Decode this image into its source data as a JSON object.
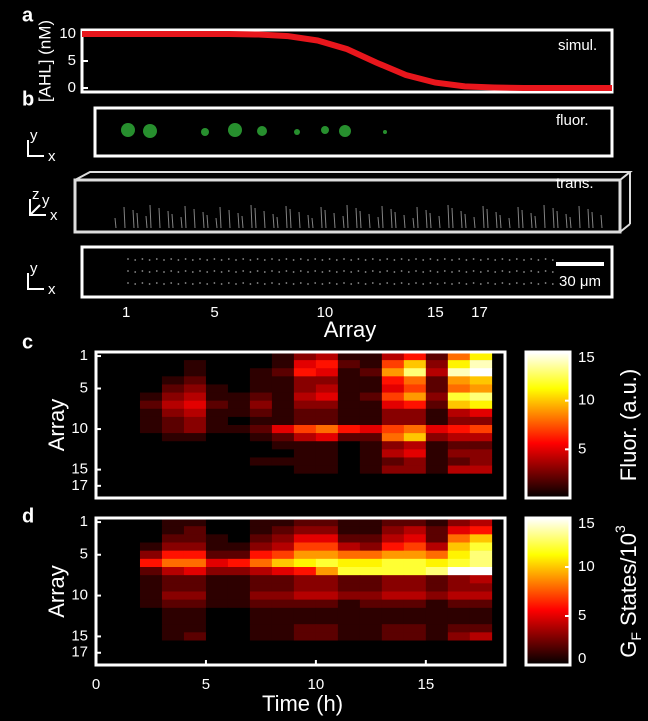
{
  "chart_data": [
    {
      "type": "line",
      "panel": "a",
      "ylabel": "[AHL] (nM)",
      "annotation": "simul.",
      "color": "#e8161c",
      "x": [
        0,
        1,
        2,
        3,
        4,
        5,
        6,
        7,
        8,
        9,
        10,
        11,
        12,
        13,
        14,
        15,
        16,
        17,
        18
      ],
      "values": [
        10,
        10,
        10,
        10,
        10,
        10,
        9.9,
        9.6,
        8.8,
        7.2,
        4.7,
        2.4,
        1,
        0.3,
        0.1,
        0,
        0,
        0,
        0
      ],
      "xlim": [
        0,
        18
      ],
      "ylim": [
        0,
        10
      ],
      "yticks": [
        0,
        5,
        10
      ]
    },
    {
      "type": "image",
      "panel": "b",
      "labels": [
        "fluor.",
        "trans."
      ],
      "scale_bar": "30 μm",
      "axes_glyphs": [
        "y",
        "x",
        "z"
      ],
      "xlabel": "Array",
      "xlim": [
        -1,
        23
      ],
      "xticks": [
        1,
        5,
        10,
        15,
        17
      ]
    },
    {
      "type": "heatmap",
      "panel": "c",
      "ylabel": "Array",
      "colorbar_label": "Fluor. (a.u.)",
      "x": [
        0.5,
        1.5,
        2.5,
        3.5,
        4.5,
        5.5,
        6.5,
        7.5,
        8.5,
        9.5,
        10.5,
        11.5,
        12.5,
        13.5,
        14.5,
        15.5,
        16.5,
        17.5
      ],
      "y": [
        1,
        2,
        3,
        4,
        5,
        6,
        7,
        8,
        9,
        10,
        11,
        12,
        13,
        14,
        15,
        16,
        17
      ],
      "values": [
        [
          0,
          0,
          0,
          0,
          0,
          0,
          0,
          0,
          1,
          3,
          4,
          1,
          1,
          4,
          6,
          2,
          8,
          11
        ],
        [
          0,
          0,
          0,
          0,
          1,
          0,
          0,
          0,
          1,
          5,
          6,
          2,
          1,
          7,
          10,
          3,
          11,
          14
        ],
        [
          0,
          0,
          0,
          0,
          1,
          0,
          0,
          1,
          2,
          6,
          5,
          1,
          2,
          9,
          13,
          4,
          14,
          15
        ],
        [
          0,
          0,
          0,
          1,
          2,
          0,
          0,
          1,
          1,
          3,
          3,
          1,
          1,
          6,
          8,
          2,
          9,
          10
        ],
        [
          0,
          0,
          0,
          2,
          3,
          1,
          0,
          1,
          1,
          3,
          4,
          1,
          1,
          5,
          7,
          2,
          8,
          9
        ],
        [
          0,
          0,
          1,
          3,
          4,
          1,
          1,
          2,
          1,
          4,
          5,
          1,
          2,
          7,
          9,
          3,
          12,
          13
        ],
        [
          0,
          0,
          2,
          4,
          5,
          2,
          1,
          3,
          1,
          3,
          3,
          1,
          1,
          5,
          6,
          2,
          10,
          11
        ],
        [
          0,
          0,
          1,
          3,
          4,
          1,
          1,
          2,
          1,
          2,
          2,
          1,
          1,
          3,
          3,
          1,
          4,
          5
        ],
        [
          0,
          0,
          1,
          2,
          3,
          1,
          0,
          1,
          1,
          2,
          2,
          1,
          1,
          3,
          3,
          1,
          3,
          3
        ],
        [
          0,
          0,
          1,
          2,
          3,
          1,
          1,
          2,
          5,
          7,
          8,
          6,
          5,
          7,
          8,
          5,
          6,
          7
        ],
        [
          0,
          0,
          0,
          1,
          1,
          0,
          0,
          1,
          2,
          4,
          5,
          2,
          2,
          8,
          10,
          3,
          4,
          4
        ],
        [
          0,
          0,
          0,
          0,
          0,
          0,
          0,
          0,
          1,
          1,
          1,
          0,
          1,
          3,
          4,
          1,
          2,
          2
        ],
        [
          0,
          0,
          0,
          0,
          0,
          0,
          0,
          0,
          0,
          1,
          1,
          0,
          1,
          4,
          5,
          1,
          3,
          3
        ],
        [
          0,
          0,
          0,
          0,
          0,
          0,
          0,
          1,
          1,
          1,
          1,
          0,
          1,
          2,
          3,
          1,
          2,
          3
        ],
        [
          0,
          0,
          0,
          0,
          0,
          0,
          0,
          0,
          0,
          1,
          1,
          0,
          1,
          3,
          3,
          1,
          4,
          4
        ],
        [
          0,
          0,
          0,
          0,
          0,
          0,
          0,
          0,
          0,
          0,
          0,
          0,
          0,
          0,
          0,
          0,
          0,
          0
        ],
        [
          0,
          0,
          0,
          0,
          0,
          0,
          0,
          0,
          0,
          0,
          0,
          0,
          0,
          0,
          0,
          0,
          0,
          0
        ]
      ],
      "xlim": [
        0,
        18.6
      ],
      "ylim": [
        0.5,
        18.5
      ],
      "yticks": [
        1,
        5,
        10,
        15,
        17
      ],
      "clim": [
        0,
        15
      ],
      "cticks": [
        5,
        10,
        15
      ]
    },
    {
      "type": "heatmap",
      "panel": "d",
      "ylabel": "Array",
      "xlabel": "Time (h)",
      "colorbar_label": {
        "main": "G",
        "sub": "F",
        "rest": " States/10",
        "sup": "3"
      },
      "x": [
        0.5,
        1.5,
        2.5,
        3.5,
        4.5,
        5.5,
        6.5,
        7.5,
        8.5,
        9.5,
        10.5,
        11.5,
        12.5,
        13.5,
        14.5,
        15.5,
        16.5,
        17.5
      ],
      "y": [
        1,
        2,
        3,
        4,
        5,
        6,
        7,
        8,
        9,
        10,
        11,
        12,
        13,
        14,
        15,
        16,
        17
      ],
      "values": [
        [
          0,
          0,
          0,
          1,
          1,
          0,
          0,
          1,
          1,
          2,
          2,
          1,
          1,
          2,
          2,
          1,
          3,
          4
        ],
        [
          0,
          0,
          0,
          1,
          2,
          0,
          0,
          1,
          2,
          3,
          3,
          1,
          1,
          3,
          4,
          2,
          5,
          6
        ],
        [
          0,
          0,
          0,
          2,
          2,
          1,
          0,
          2,
          3,
          5,
          5,
          2,
          2,
          4,
          5,
          2,
          8,
          10
        ],
        [
          0,
          0,
          1,
          3,
          3,
          1,
          1,
          3,
          4,
          7,
          7,
          4,
          3,
          6,
          7,
          4,
          10,
          12
        ],
        [
          0,
          0,
          3,
          6,
          6,
          2,
          2,
          6,
          7,
          9,
          9,
          8,
          8,
          9,
          9,
          8,
          11,
          13
        ],
        [
          0,
          0,
          6,
          8,
          8,
          5,
          6,
          8,
          10,
          11,
          12,
          11,
          11,
          12,
          12,
          11,
          12,
          13
        ],
        [
          0,
          0,
          2,
          4,
          5,
          3,
          3,
          4,
          5,
          6,
          9,
          12,
          12,
          12,
          12,
          13,
          15,
          15
        ],
        [
          0,
          0,
          1,
          2,
          2,
          1,
          1,
          2,
          2,
          3,
          3,
          2,
          2,
          3,
          3,
          2,
          3,
          4
        ],
        [
          0,
          0,
          1,
          2,
          2,
          1,
          1,
          2,
          2,
          3,
          3,
          2,
          2,
          3,
          3,
          2,
          3,
          3
        ],
        [
          0,
          0,
          1,
          3,
          3,
          1,
          1,
          3,
          3,
          4,
          4,
          3,
          3,
          4,
          4,
          3,
          4,
          4
        ],
        [
          0,
          0,
          1,
          2,
          2,
          1,
          1,
          2,
          2,
          2,
          2,
          1,
          2,
          2,
          2,
          1,
          2,
          2
        ],
        [
          0,
          0,
          0,
          1,
          1,
          0,
          0,
          1,
          1,
          1,
          1,
          1,
          1,
          1,
          1,
          1,
          1,
          1
        ],
        [
          0,
          0,
          0,
          1,
          1,
          0,
          0,
          1,
          1,
          1,
          1,
          1,
          1,
          1,
          1,
          1,
          1,
          1
        ],
        [
          0,
          0,
          0,
          1,
          1,
          0,
          0,
          1,
          1,
          2,
          2,
          1,
          1,
          2,
          2,
          1,
          2,
          2
        ],
        [
          0,
          0,
          0,
          1,
          2,
          0,
          0,
          1,
          1,
          2,
          2,
          1,
          1,
          2,
          2,
          1,
          3,
          4
        ],
        [
          0,
          0,
          0,
          0,
          0,
          0,
          0,
          0,
          0,
          0,
          0,
          0,
          0,
          0,
          0,
          0,
          0,
          0
        ],
        [
          0,
          0,
          0,
          0,
          0,
          0,
          0,
          0,
          0,
          0,
          0,
          0,
          0,
          0,
          0,
          0,
          0,
          0
        ]
      ],
      "xlim": [
        0,
        18.6
      ],
      "ylim": [
        0.5,
        18.5
      ],
      "yticks": [
        1,
        5,
        10,
        15,
        17
      ],
      "xticks": [
        0,
        5,
        10,
        15
      ],
      "clim": [
        0,
        15
      ],
      "cticks": [
        0,
        5,
        10,
        15
      ]
    }
  ]
}
